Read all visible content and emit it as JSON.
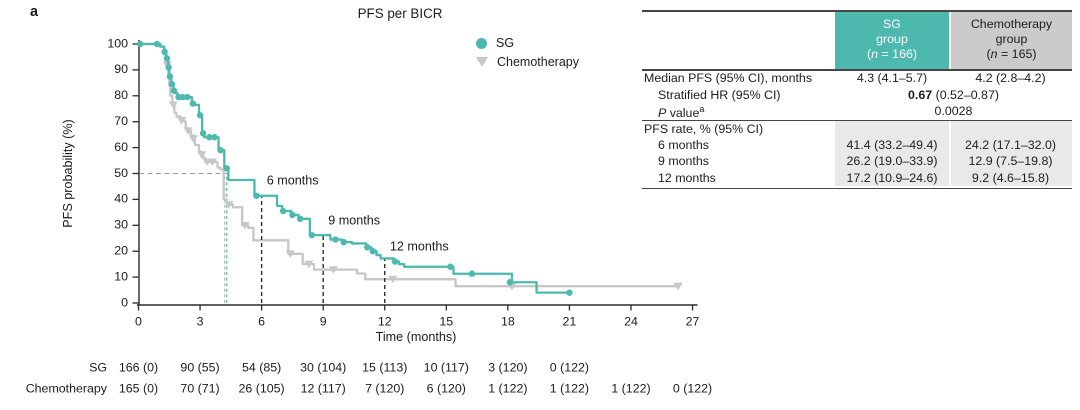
{
  "panel_label": "a",
  "legend": {
    "items": [
      {
        "label": "SG",
        "marker": "circle",
        "color": "#4db8ae"
      },
      {
        "label": "Chemotherapy",
        "marker": "triangle-down",
        "color": "#c6c6c6"
      }
    ]
  },
  "colors": {
    "sg_teal": "#4db8ae",
    "chemo_gray": "#c7c7c7",
    "header_gray_bg": "#cbcbcb",
    "section_gray_bg": "#e9e9e9",
    "table_border": "#454545",
    "axis": "#2b2b2b",
    "landmark_dash": "#2c2c2c",
    "fifty_dash": "#999999",
    "chemo_median_dash": "#b3b3b3"
  },
  "chart_data": {
    "type": "line",
    "subtype": "kaplan_meier_step",
    "title": "PFS per BICR",
    "xlabel": "Time (months)",
    "ylabel": "PFS probability (%)",
    "xlim": [
      0,
      27
    ],
    "ylim": [
      0,
      100
    ],
    "xticks": [
      0,
      3,
      6,
      9,
      12,
      15,
      18,
      21,
      24,
      27
    ],
    "yticks": [
      0,
      10,
      20,
      30,
      40,
      50,
      60,
      70,
      80,
      90,
      100
    ],
    "grid": false,
    "legend_position": "upper-right-inside",
    "series": [
      {
        "name": "SG",
        "color": "#4db8ae",
        "marker": "circle",
        "steps": [
          [
            0,
            100
          ],
          [
            1.05,
            99
          ],
          [
            1.25,
            97
          ],
          [
            1.35,
            94.5
          ],
          [
            1.45,
            91
          ],
          [
            1.5,
            87.5
          ],
          [
            1.6,
            84.5
          ],
          [
            1.7,
            82
          ],
          [
            1.8,
            81
          ],
          [
            1.9,
            79.5
          ],
          [
            2.6,
            77
          ],
          [
            2.75,
            76.5
          ],
          [
            2.95,
            72.5
          ],
          [
            3.1,
            65.5
          ],
          [
            3.2,
            64
          ],
          [
            3.9,
            59
          ],
          [
            4.18,
            52
          ],
          [
            4.38,
            47.5
          ],
          [
            5.65,
            41.4
          ],
          [
            6.75,
            37.5
          ],
          [
            7.0,
            35.5
          ],
          [
            7.45,
            34
          ],
          [
            7.8,
            32.5
          ],
          [
            8.35,
            26.2
          ],
          [
            9.35,
            24.5
          ],
          [
            9.9,
            23.5
          ],
          [
            10.4,
            23
          ],
          [
            11.1,
            21.5
          ],
          [
            11.35,
            20
          ],
          [
            11.6,
            18.5
          ],
          [
            11.8,
            17.2
          ],
          [
            12.45,
            16
          ],
          [
            12.7,
            15
          ],
          [
            12.95,
            14
          ],
          [
            15.35,
            11.3
          ],
          [
            18.2,
            8
          ],
          [
            19.4,
            4
          ]
        ],
        "end_t": 21,
        "censor_marks": [
          [
            0.08,
            100
          ],
          [
            0.9,
            100
          ],
          [
            1.27,
            97
          ],
          [
            1.38,
            94.5
          ],
          [
            1.47,
            91
          ],
          [
            1.53,
            87.5
          ],
          [
            1.63,
            84.5
          ],
          [
            1.73,
            82
          ],
          [
            1.95,
            79.5
          ],
          [
            2.15,
            79.5
          ],
          [
            2.38,
            79.5
          ],
          [
            2.65,
            77
          ],
          [
            3.0,
            72.5
          ],
          [
            3.15,
            65.5
          ],
          [
            3.45,
            64
          ],
          [
            3.7,
            64
          ],
          [
            4.0,
            59
          ],
          [
            4.3,
            52
          ],
          [
            5.75,
            41.4
          ],
          [
            7.05,
            35.5
          ],
          [
            7.5,
            34
          ],
          [
            7.88,
            32.5
          ],
          [
            8.45,
            26.2
          ],
          [
            9.6,
            24.5
          ],
          [
            10.0,
            23.5
          ],
          [
            11.15,
            21.5
          ],
          [
            11.42,
            20
          ],
          [
            12.5,
            16
          ],
          [
            15.2,
            14
          ],
          [
            16.25,
            11.3
          ],
          [
            18.1,
            8
          ],
          [
            21,
            4
          ]
        ]
      },
      {
        "name": "Chemotherapy",
        "color": "#c7c7c7",
        "marker": "triangle-down",
        "steps": [
          [
            0,
            100
          ],
          [
            1.1,
            99
          ],
          [
            1.25,
            96
          ],
          [
            1.35,
            92
          ],
          [
            1.45,
            88
          ],
          [
            1.5,
            84
          ],
          [
            1.55,
            80
          ],
          [
            1.65,
            76.5
          ],
          [
            1.75,
            73.5
          ],
          [
            1.85,
            72
          ],
          [
            2.05,
            70.5
          ],
          [
            2.25,
            70
          ],
          [
            2.3,
            67.5
          ],
          [
            2.4,
            66.5
          ],
          [
            2.55,
            64.8
          ],
          [
            2.65,
            63.5
          ],
          [
            2.75,
            61
          ],
          [
            2.95,
            58.5
          ],
          [
            3.05,
            57.3
          ],
          [
            3.15,
            56
          ],
          [
            3.25,
            54.5
          ],
          [
            3.85,
            52.3
          ],
          [
            4.0,
            51.5
          ],
          [
            4.15,
            40
          ],
          [
            4.3,
            38
          ],
          [
            4.6,
            37
          ],
          [
            5.05,
            30
          ],
          [
            5.35,
            29
          ],
          [
            5.6,
            24.2
          ],
          [
            7.3,
            19
          ],
          [
            8.0,
            15
          ],
          [
            8.55,
            12.9
          ],
          [
            10.65,
            11.4
          ],
          [
            11.05,
            9.2
          ],
          [
            15.45,
            6.5
          ]
        ],
        "end_t": 26.3,
        "censor_marks": [
          [
            1.4,
            92
          ],
          [
            1.7,
            76.5
          ],
          [
            2.1,
            70.5
          ],
          [
            2.42,
            66.5
          ],
          [
            2.67,
            63.5
          ],
          [
            3.08,
            57.3
          ],
          [
            3.35,
            54.5
          ],
          [
            3.6,
            54.5
          ],
          [
            4.4,
            38
          ],
          [
            5.2,
            30
          ],
          [
            7.4,
            19
          ],
          [
            8.3,
            15
          ],
          [
            9.5,
            12.9
          ],
          [
            12.4,
            9.2
          ],
          [
            18.2,
            6.5
          ],
          [
            26.3,
            6.5
          ]
        ]
      }
    ],
    "annotations": {
      "median_survival_lines": [
        {
          "series": "SG",
          "x": 4.3,
          "y_top": 50,
          "color": "#4db8ae"
        },
        {
          "series": "Chemotherapy",
          "x": 4.2,
          "y_top": 50,
          "color": "#b3b3b3"
        }
      ],
      "fifty_percent_line": {
        "y": 50,
        "x_start": 0,
        "x_end": 4.3,
        "color": "#999999"
      },
      "landmark_lines": [
        {
          "x": 6,
          "y_top": 41.4,
          "label": "6 months",
          "label_x": 6.25,
          "label_y": 47
        },
        {
          "x": 9,
          "y_top": 26.2,
          "label": "9 months",
          "label_x": 9.25,
          "label_y": 31.5
        },
        {
          "x": 12,
          "y_top": 17.2,
          "label": "12 months",
          "label_x": 12.25,
          "label_y": 21.5
        }
      ]
    }
  },
  "risk_table": {
    "rows": [
      {
        "label": "SG",
        "counts": [
          "166 (0)",
          "90 (55)",
          "54 (85)",
          "30 (104)",
          "15 (113)",
          "10 (117)",
          "3 (120)",
          "0 (122)"
        ]
      },
      {
        "label": "Chemotherapy",
        "counts": [
          "165 (0)",
          "70 (71)",
          "26 (105)",
          "12 (117)",
          "7 (120)",
          "6 (120)",
          "1 (122)",
          "1 (122)",
          "1 (122)",
          "0 (122)"
        ]
      }
    ]
  },
  "stats": {
    "header": {
      "sg": {
        "line1": "SG",
        "line2": "group",
        "n_prefix": "(",
        "n_italic": "n",
        "n_suffix": " = 166)"
      },
      "chemo": {
        "line1": "Chemotherapy",
        "line2": "group",
        "n_prefix": "(",
        "n_italic": "n",
        "n_suffix": " = 165)"
      }
    },
    "rows": {
      "median": {
        "label": "Median PFS (95% CI), months",
        "sg": "4.3 (4.1–5.7)",
        "chemo": "4.2 (2.8–4.2)"
      },
      "hr": {
        "label": "Stratified HR (95% CI)",
        "value_bold": "0.67",
        "value_rest": " (0.52–0.87)"
      },
      "p": {
        "label_italic": "P",
        "label_rest": " value",
        "label_sup": "a",
        "value": "0.0028"
      },
      "rate_header": {
        "label": "PFS rate, % (95% CI)"
      },
      "rate6": {
        "label": "6 months",
        "sg": "41.4 (33.2–49.4)",
        "chemo": "24.2 (17.1–32.0)"
      },
      "rate9": {
        "label": "9 months",
        "sg": "26.2 (19.0–33.9)",
        "chemo": "12.9 (7.5–19.8)"
      },
      "rate12": {
        "label": "12 months",
        "sg": "17.2 (10.9–24.6)",
        "chemo": "9.2 (4.6–15.8)"
      }
    }
  }
}
